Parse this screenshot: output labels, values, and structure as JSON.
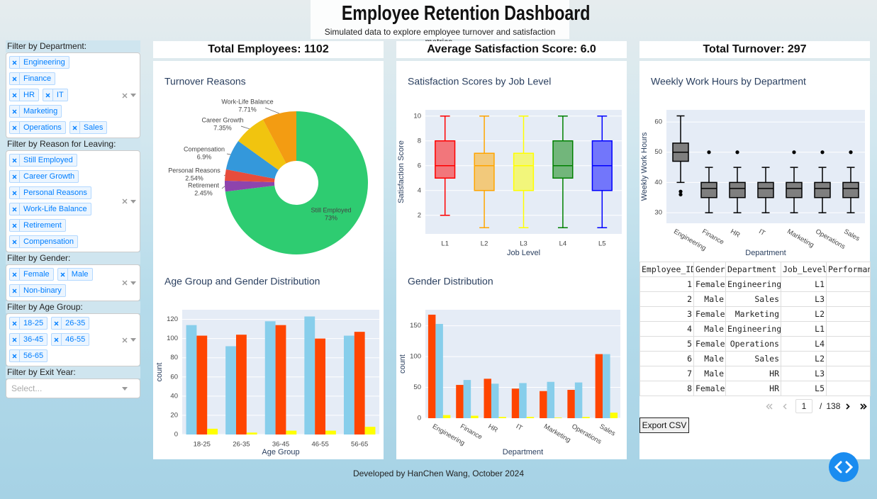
{
  "header": {
    "title": "Employee Retention Dashboard",
    "subtitle": "Simulated data to explore employee turnover and satisfaction metrics."
  },
  "filters": [
    {
      "label": "Filter by Department:",
      "selected": [
        "Engineering",
        "Finance",
        "HR",
        "IT",
        "Marketing",
        "Operations",
        "Sales"
      ]
    },
    {
      "label": "Filter by Reason for Leaving:",
      "selected": [
        "Still Employed",
        "Career Growth",
        "Personal Reasons",
        "Work-Life Balance",
        "Retirement",
        "Compensation"
      ]
    },
    {
      "label": "Filter by Gender:",
      "selected": [
        "Female",
        "Male",
        "Non-binary"
      ]
    },
    {
      "label": "Filter by Age Group:",
      "selected": [
        "18-25",
        "26-35",
        "36-45",
        "46-55",
        "56-65"
      ]
    },
    {
      "label": "Filter by Exit Year:",
      "placeholder": "Select..."
    }
  ],
  "kpis": [
    "Total Employees: 1102",
    "Average Satisfaction Score: 6.0",
    "Total Turnover: 297"
  ],
  "chart_data": [
    {
      "type": "pie",
      "title": "Turnover Reasons",
      "categories": [
        "Still Employed",
        "Retirement",
        "Personal Reasons",
        "Compensation",
        "Career Growth",
        "Work-Life Balance"
      ],
      "values": [
        73,
        2.45,
        2.54,
        6.9,
        7.35,
        7.71
      ],
      "value_labels": [
        "73%",
        "2.45%",
        "2.54%",
        "6.9%",
        "7.35%",
        "7.71%"
      ],
      "colors": [
        "#2ecc71",
        "#8e44ad",
        "#e74c3c",
        "#3498db",
        "#f1c40f",
        "#f39c12"
      ]
    },
    {
      "type": "box",
      "title": "Satisfaction Scores by Job Level",
      "xlabel": "Job Level",
      "ylabel": "Satisfaction Score",
      "categories": [
        "L1",
        "L2",
        "L3",
        "L4",
        "L5"
      ],
      "ylim": [
        0.5,
        10.5
      ],
      "yticks": [
        2,
        4,
        6,
        8,
        10
      ],
      "boxes": [
        {
          "min": 2,
          "q1": 5,
          "median": 6,
          "q3": 8,
          "max": 10,
          "color": "#ff0000"
        },
        {
          "min": 1,
          "q1": 4,
          "median": 6,
          "q3": 7,
          "max": 10,
          "color": "#ffa500"
        },
        {
          "min": 1,
          "q1": 4,
          "median": 6,
          "q3": 7,
          "max": 10,
          "color": "#ffff00"
        },
        {
          "min": 1,
          "q1": 5,
          "median": 6,
          "q3": 8,
          "max": 10,
          "color": "#008000"
        },
        {
          "min": 1,
          "q1": 4,
          "median": 6,
          "q3": 8,
          "max": 10,
          "color": "#0000ff"
        }
      ]
    },
    {
      "type": "box",
      "title": "Weekly Work Hours by Department",
      "xlabel": "Department",
      "ylabel": "Weekly Work Hours",
      "categories": [
        "Engineering",
        "Finance",
        "HR",
        "IT",
        "Marketing",
        "Operations",
        "Sales"
      ],
      "ylim": [
        26.5,
        64
      ],
      "yticks": [
        30,
        40,
        50,
        60
      ],
      "color": "#7f7f7f",
      "line_color": "#000000",
      "boxes": [
        {
          "min": 40,
          "q1": 47,
          "median": 50,
          "q3": 53,
          "max": 62,
          "outliers": [
            37,
            36
          ]
        },
        {
          "min": 30,
          "q1": 35,
          "median": 38,
          "q3": 40,
          "max": 45,
          "outliers": [
            50
          ]
        },
        {
          "min": 30,
          "q1": 35,
          "median": 38,
          "q3": 40,
          "max": 45,
          "outliers": [
            50
          ]
        },
        {
          "min": 30,
          "q1": 35,
          "median": 38,
          "q3": 40,
          "max": 45,
          "outliers": []
        },
        {
          "min": 30,
          "q1": 35,
          "median": 38,
          "q3": 40,
          "max": 45,
          "outliers": [
            50
          ]
        },
        {
          "min": 30,
          "q1": 35,
          "median": 38,
          "q3": 40,
          "max": 45,
          "outliers": [
            50
          ]
        },
        {
          "min": 30,
          "q1": 35,
          "median": 38,
          "q3": 40,
          "max": 45,
          "outliers": [
            50
          ]
        }
      ]
    },
    {
      "type": "bar",
      "title": "Age Group and Gender Distribution",
      "xlabel": "Age Group",
      "ylabel": "count",
      "categories": [
        "18-25",
        "26-35",
        "36-45",
        "46-55",
        "56-65"
      ],
      "ylim": [
        0,
        130
      ],
      "yticks": [
        0,
        20,
        40,
        60,
        80,
        100,
        120
      ],
      "series": [
        {
          "color": "#87ceeb",
          "values": [
            114,
            92,
            118,
            123,
            103
          ]
        },
        {
          "color": "#ff4500",
          "values": [
            103,
            104,
            114,
            100,
            107
          ]
        },
        {
          "color": "#ffff00",
          "values": [
            6,
            2,
            4,
            4,
            8
          ]
        }
      ]
    },
    {
      "type": "bar",
      "title": "Gender Distribution",
      "xlabel": "Department",
      "ylabel": "count",
      "categories": [
        "Engineering",
        "Finance",
        "HR",
        "IT",
        "Marketing",
        "Operations",
        "Sales"
      ],
      "ylim": [
        0,
        176
      ],
      "yticks": [
        0,
        50,
        100,
        150
      ],
      "series": [
        {
          "color": "#ff4500",
          "values": [
            168,
            54,
            64,
            48,
            44,
            46,
            104
          ]
        },
        {
          "color": "#87ceeb",
          "values": [
            153,
            62,
            56,
            57,
            59,
            58,
            104
          ]
        },
        {
          "color": "#ffff00",
          "values": [
            5,
            4,
            2,
            2,
            1,
            2,
            9
          ]
        }
      ]
    }
  ],
  "table": {
    "columns": [
      "Employee_ID",
      "Gender",
      "Department",
      "Job_Level",
      "Performan"
    ],
    "rows": [
      [
        1,
        "Female",
        "Engineering",
        "L1"
      ],
      [
        2,
        "Male",
        "Sales",
        "L3"
      ],
      [
        3,
        "Female",
        "Marketing",
        "L2"
      ],
      [
        4,
        "Male",
        "Engineering",
        "L1"
      ],
      [
        5,
        "Female",
        "Operations",
        "L4"
      ],
      [
        6,
        "Male",
        "Sales",
        "L2"
      ],
      [
        7,
        "Male",
        "HR",
        "L3"
      ],
      [
        8,
        "Female",
        "HR",
        "L5"
      ]
    ]
  },
  "pagination": {
    "current": 1,
    "separator": "/",
    "total": 138
  },
  "export_button": "Export CSV",
  "footer": "Developed by HanChen Wang, October 2024"
}
